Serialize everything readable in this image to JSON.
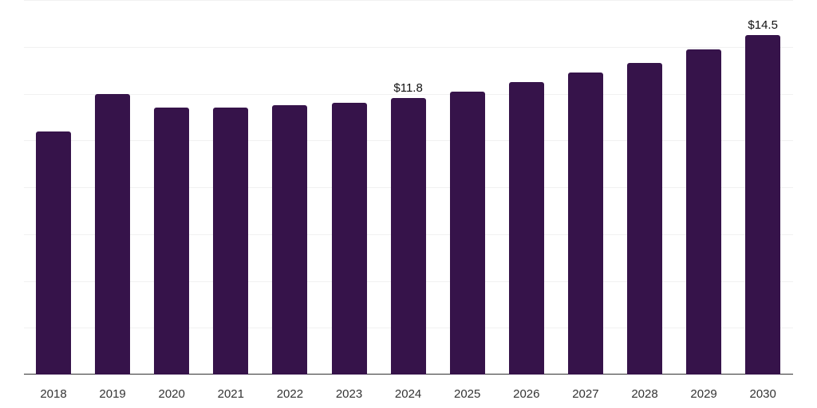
{
  "chart_data": {
    "type": "bar",
    "title": "",
    "xlabel": "",
    "ylabel": "",
    "categories": [
      "2018",
      "2019",
      "2020",
      "2021",
      "2022",
      "2023",
      "2024",
      "2025",
      "2026",
      "2027",
      "2028",
      "2029",
      "2030"
    ],
    "values": [
      10.4,
      12.0,
      11.4,
      11.4,
      11.5,
      11.6,
      11.8,
      12.1,
      12.5,
      12.9,
      13.3,
      13.9,
      14.5
    ],
    "data_labels": {
      "2024": "$11.8",
      "2030": "$14.5"
    },
    "ylim": [
      0,
      16
    ],
    "grid": true,
    "legend": null,
    "bar_color": "#36134a"
  }
}
